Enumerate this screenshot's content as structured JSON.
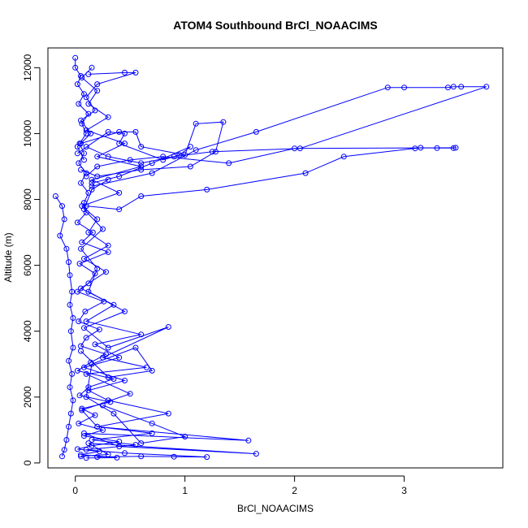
{
  "chart_data": {
    "type": "line",
    "title": "ATOM4 Southbound BrCl_NOAACIMS",
    "xlabel": "BrCl_NOAACIMS",
    "ylabel": "Altitude (m)",
    "xlim": [
      -0.25,
      3.9
    ],
    "ylim": [
      -150,
      12600
    ],
    "xticks": [
      0,
      1,
      2,
      3
    ],
    "yticks": [
      0,
      2000,
      4000,
      6000,
      8000,
      10000,
      12000
    ],
    "color": "#0000ff",
    "grid": false,
    "series": [
      {
        "points": [
          [
            0.1,
            150
          ],
          [
            0.38,
            160
          ],
          [
            0.05,
            250
          ],
          [
            0.22,
            350
          ],
          [
            0.02,
            420
          ],
          [
            0.15,
            520
          ],
          [
            0.4,
            650
          ],
          [
            0.08,
            820
          ],
          [
            0.25,
            1000
          ],
          [
            0.03,
            1200
          ],
          [
            0.18,
            1450
          ],
          [
            0.06,
            1650
          ],
          [
            0.32,
            1850
          ],
          [
            0.04,
            2050
          ],
          [
            0.12,
            2300
          ],
          [
            0.35,
            2550
          ],
          [
            0.02,
            2800
          ],
          [
            0.14,
            3050
          ],
          [
            0.28,
            3300
          ],
          [
            0.05,
            3550
          ],
          [
            0.1,
            3800
          ],
          [
            0.22,
            4050
          ],
          [
            0.03,
            4300
          ],
          [
            0.09,
            4600
          ],
          [
            0.26,
            4900
          ],
          [
            0.02,
            5200
          ],
          [
            0.12,
            5450
          ],
          [
            0.18,
            5750
          ],
          [
            0.04,
            6050
          ],
          [
            0.3,
            6400
          ],
          [
            0.06,
            6700
          ],
          [
            0.16,
            7000
          ],
          [
            0.02,
            7300
          ],
          [
            0.1,
            7600
          ],
          [
            0.08,
            7900
          ],
          [
            0.12,
            8200
          ],
          [
            0.05,
            8500
          ],
          [
            0.1,
            8800
          ],
          [
            0.03,
            9100
          ],
          [
            0.08,
            9400
          ],
          [
            0.04,
            9700
          ],
          [
            0.1,
            10000
          ],
          [
            0.06,
            10300
          ],
          [
            0.12,
            10600
          ],
          [
            0.03,
            10900
          ],
          [
            0.08,
            11200
          ],
          [
            0.02,
            11500
          ],
          [
            0.05,
            11750
          ],
          [
            0.0,
            12000
          ],
          [
            0.0,
            12300
          ]
        ]
      },
      {
        "points": [
          [
            0.2,
            180
          ],
          [
            0.6,
            200
          ],
          [
            0.9,
            190
          ],
          [
            1.2,
            180
          ],
          [
            0.45,
            300
          ],
          [
            0.1,
            400
          ],
          [
            0.55,
            550
          ],
          [
            0.15,
            700
          ],
          [
            0.7,
            900
          ],
          [
            0.2,
            1100
          ],
          [
            0.85,
            1500
          ],
          [
            0.3,
            1900
          ],
          [
            0.12,
            2200
          ],
          [
            0.45,
            2500
          ],
          [
            0.08,
            2900
          ],
          [
            0.4,
            3200
          ],
          [
            0.18,
            3600
          ],
          [
            0.6,
            3900
          ],
          [
            0.1,
            4300
          ],
          [
            0.35,
            4800
          ],
          [
            0.05,
            5300
          ],
          [
            0.28,
            5800
          ],
          [
            0.08,
            6200
          ],
          [
            0.3,
            6600
          ],
          [
            0.12,
            7000
          ],
          [
            0.2,
            7400
          ],
          [
            0.06,
            7800
          ],
          [
            0.4,
            8200
          ],
          [
            0.15,
            8600
          ],
          [
            0.6,
            9000
          ],
          [
            0.2,
            9300
          ],
          [
            0.45,
            9700
          ],
          [
            0.1,
            10100
          ],
          [
            0.3,
            10500
          ],
          [
            0.12,
            10900
          ],
          [
            0.2,
            11300
          ],
          [
            0.06,
            11700
          ],
          [
            0.15,
            12000
          ]
        ]
      },
      {
        "points": [
          [
            0.05,
            200
          ],
          [
            0.3,
            260
          ],
          [
            0.12,
            600
          ],
          [
            1.65,
            280
          ],
          [
            0.4,
            500
          ],
          [
            0.08,
            900
          ],
          [
            1.58,
            680
          ],
          [
            0.2,
            1100
          ],
          [
            0.06,
            1600
          ],
          [
            0.5,
            2100
          ],
          [
            0.1,
            2700
          ],
          [
            0.65,
            2900
          ],
          [
            0.25,
            3200
          ],
          [
            0.85,
            4130
          ],
          [
            0.3,
            3500
          ],
          [
            0.08,
            4100
          ],
          [
            0.45,
            4600
          ],
          [
            0.12,
            5200
          ],
          [
            0.2,
            5900
          ],
          [
            0.05,
            6500
          ],
          [
            0.25,
            7100
          ],
          [
            0.08,
            7700
          ],
          [
            0.15,
            8300
          ],
          [
            0.3,
            8600
          ]
        ]
      },
      {
        "points": [
          [
            0.1,
            7800
          ],
          [
            0.4,
            7700
          ],
          [
            0.6,
            8100
          ],
          [
            1.2,
            8300
          ],
          [
            2.1,
            8800
          ],
          [
            2.45,
            9300
          ],
          [
            3.1,
            9550
          ],
          [
            3.15,
            9570
          ],
          [
            3.3,
            9560
          ],
          [
            3.45,
            9560
          ],
          [
            3.47,
            9570
          ],
          [
            2.0,
            9550
          ],
          [
            1.4,
            9100
          ],
          [
            0.8,
            9300
          ],
          [
            0.5,
            9200
          ],
          [
            0.2,
            9000
          ],
          [
            0.1,
            8700
          ]
        ]
      },
      {
        "points": [
          [
            0.15,
            8400
          ],
          [
            0.7,
            8800
          ],
          [
            1.1,
            9500
          ],
          [
            1.65,
            10050
          ],
          [
            2.85,
            11400
          ],
          [
            3.0,
            11400
          ],
          [
            3.4,
            11400
          ],
          [
            3.45,
            11420
          ],
          [
            3.52,
            11420
          ],
          [
            3.75,
            11420
          ],
          [
            2.05,
            9550
          ],
          [
            1.25,
            9450
          ],
          [
            0.9,
            9300
          ],
          [
            0.6,
            9100
          ],
          [
            0.3,
            9300
          ],
          [
            0.1,
            9600
          ]
        ]
      },
      {
        "points": [
          [
            0.05,
            9700
          ],
          [
            0.4,
            10050
          ],
          [
            0.55,
            10050
          ],
          [
            0.6,
            9600
          ],
          [
            1.0,
            9350
          ],
          [
            1.1,
            10300
          ],
          [
            1.35,
            10350
          ],
          [
            1.28,
            9450
          ],
          [
            1.05,
            9000
          ],
          [
            0.6,
            8900
          ],
          [
            0.2,
            8700
          ],
          [
            0.05,
            8900
          ]
        ]
      },
      {
        "points": [
          [
            0.02,
            9400
          ],
          [
            0.3,
            10050
          ],
          [
            0.45,
            10000
          ],
          [
            0.4,
            9700
          ],
          [
            0.8,
            9200
          ],
          [
            0.95,
            9350
          ],
          [
            1.05,
            9600
          ],
          [
            0.7,
            9100
          ],
          [
            0.4,
            8700
          ],
          [
            0.15,
            8500
          ]
        ]
      },
      {
        "points": [
          [
            -0.18,
            8100
          ],
          [
            -0.12,
            7800
          ],
          [
            -0.1,
            7400
          ],
          [
            -0.14,
            6900
          ],
          [
            -0.08,
            6500
          ],
          [
            -0.06,
            6100
          ],
          [
            -0.05,
            5700
          ],
          [
            -0.03,
            5200
          ],
          [
            -0.05,
            4800
          ],
          [
            -0.02,
            4400
          ],
          [
            -0.04,
            4000
          ],
          [
            -0.02,
            3500
          ],
          [
            -0.06,
            3100
          ],
          [
            -0.03,
            2700
          ],
          [
            -0.05,
            2300
          ],
          [
            -0.02,
            1900
          ],
          [
            -0.04,
            1500
          ],
          [
            -0.06,
            1100
          ],
          [
            -0.08,
            700
          ],
          [
            -0.1,
            400
          ],
          [
            -0.12,
            200
          ]
        ]
      },
      {
        "points": [
          [
            0.12,
            11800
          ],
          [
            0.45,
            11850
          ],
          [
            0.55,
            11850
          ],
          [
            0.2,
            11500
          ],
          [
            0.1,
            11100
          ],
          [
            0.18,
            10700
          ],
          [
            0.05,
            10400
          ],
          [
            0.14,
            10000
          ],
          [
            0.02,
            9600
          ],
          [
            0.08,
            9200
          ]
        ]
      },
      {
        "points": [
          [
            0.25,
            1750
          ],
          [
            0.7,
            1200
          ],
          [
            1.0,
            800
          ],
          [
            0.6,
            600
          ],
          [
            0.35,
            1500
          ],
          [
            0.1,
            2000
          ],
          [
            0.15,
            3000
          ],
          [
            0.55,
            3500
          ],
          [
            0.7,
            2800
          ],
          [
            0.3,
            2600
          ],
          [
            0.05,
            3400
          ]
        ]
      }
    ]
  }
}
